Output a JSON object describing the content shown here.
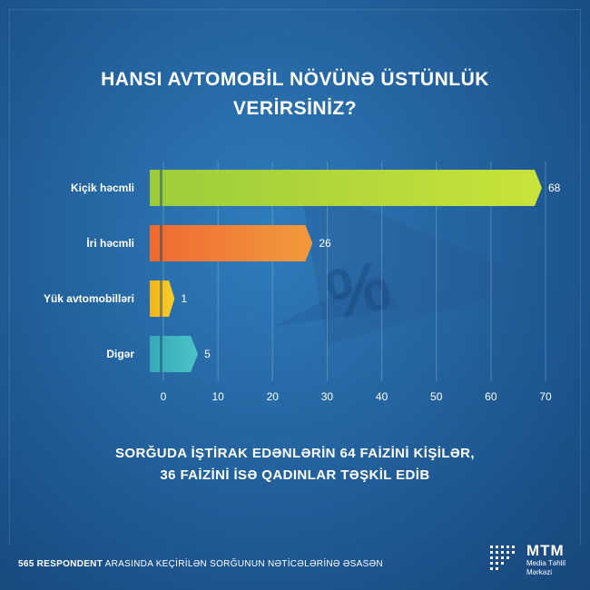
{
  "title": {
    "line1": "HANSI AVTOMOBİL NÖVÜNƏ ÜSTÜNLÜK",
    "line2": "VERİRSİNİZ?"
  },
  "chart_data": {
    "type": "bar",
    "orientation": "horizontal",
    "categories": [
      "Kiçik həcmli",
      "İri həcmli",
      "Yük avtomobilləri",
      "Digər"
    ],
    "values": [
      68,
      26,
      1,
      5
    ],
    "colors": [
      "#9ccc3a",
      "#ee6a30",
      "#f2b21a",
      "#35a9b6"
    ],
    "xlim": [
      0,
      70
    ],
    "xticks": [
      "0",
      "10",
      "20",
      "30",
      "40",
      "50",
      "60",
      "70"
    ],
    "grid": true
  },
  "note": {
    "line1": "SORĞUDA İŞTİRAK EDƏNLƏRİN 64 FAİZİNİ KİŞİLƏR,",
    "line2": "36 FAİZİNİ İSƏ QADINLAR TƏŞKİL EDİB"
  },
  "footer": {
    "bold": "565 RESPONDENT",
    "rest": " ARASINDA KEÇİRİLƏN SORĞUNUN NƏTİCƏLƏRİNƏ ƏSASƏN"
  },
  "logo": {
    "name": "MTM",
    "line1": "Media Təhlil",
    "line2": "Mərkəzi"
  }
}
